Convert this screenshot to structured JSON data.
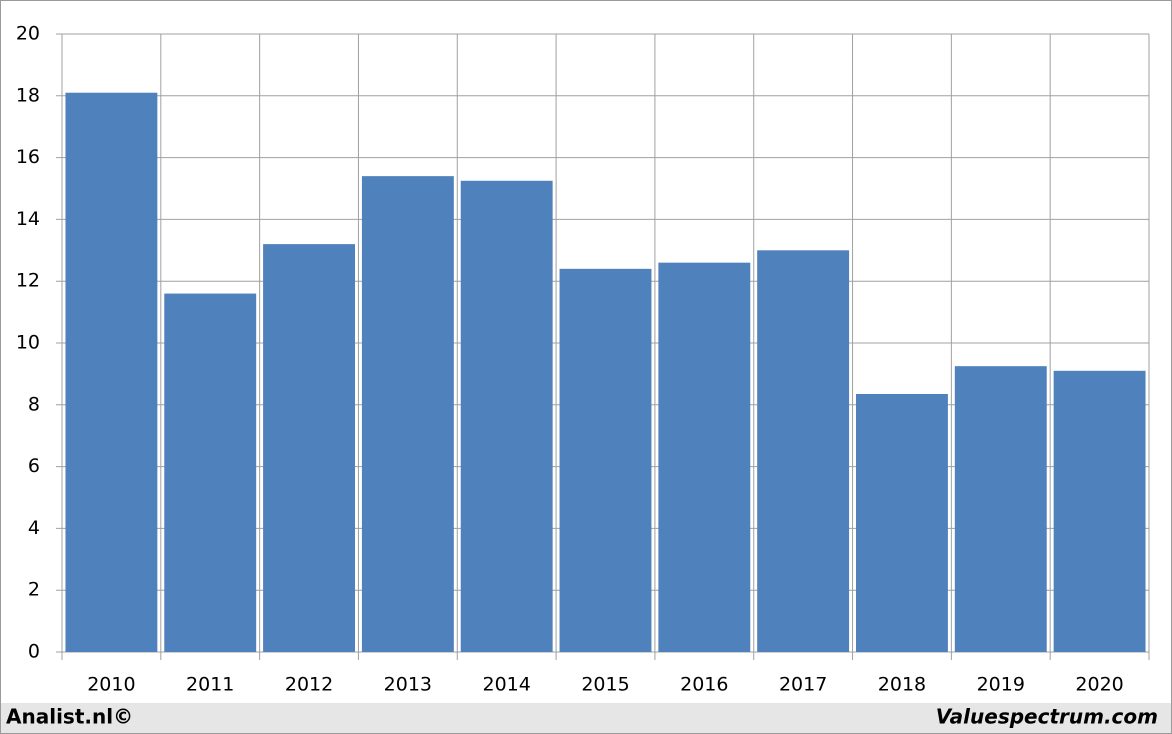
{
  "chart_data": {
    "type": "bar",
    "categories": [
      "2010",
      "2011",
      "2012",
      "2013",
      "2014",
      "2015",
      "2016",
      "2017",
      "2018",
      "2019",
      "2020"
    ],
    "values": [
      18.1,
      11.6,
      13.2,
      15.4,
      15.25,
      12.4,
      12.6,
      13.0,
      8.35,
      9.25,
      9.1
    ],
    "color": "#4f81bd",
    "ylim": [
      0,
      20
    ],
    "yticks": [
      0,
      2,
      4,
      6,
      8,
      10,
      12,
      14,
      16,
      18,
      20
    ],
    "grid": true,
    "annotations": [
      "Analist.nl©",
      "Valuespectrum.com"
    ]
  }
}
